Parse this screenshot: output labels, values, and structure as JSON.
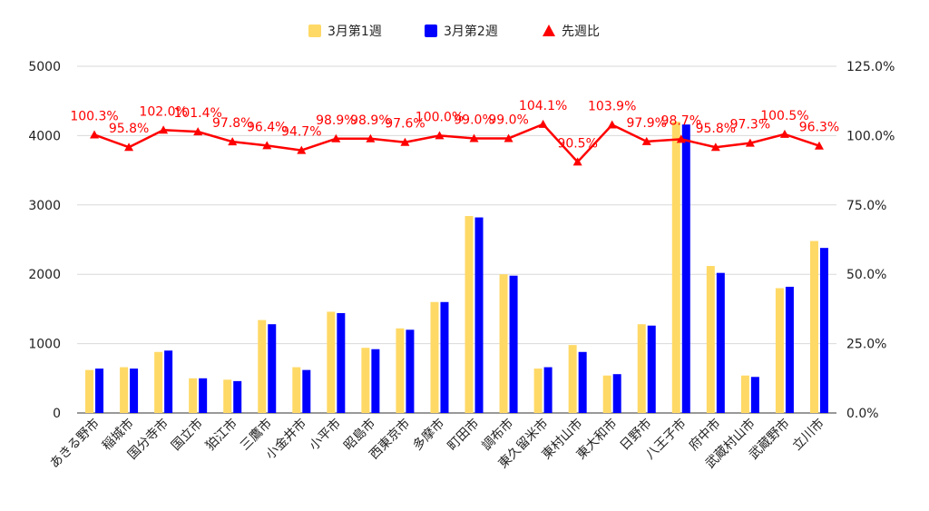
{
  "chart_data": {
    "type": "bar",
    "categories": [
      "あきる野市",
      "稲城市",
      "国分寺市",
      "国立市",
      "狛江市",
      "三鷹市",
      "小金井市",
      "小平市",
      "昭島市",
      "西東京市",
      "多摩市",
      "町田市",
      "調布市",
      "東久留米市",
      "東村山市",
      "東大和市",
      "日野市",
      "八王子市",
      "府中市",
      "武蔵村山市",
      "武蔵野市",
      "立川市"
    ],
    "series": [
      {
        "name": "3月第1週",
        "values": [
          620,
          660,
          880,
          500,
          480,
          1340,
          660,
          1460,
          940,
          1220,
          1600,
          2840,
          2000,
          640,
          980,
          540,
          1280,
          4200,
          2120,
          540,
          1800,
          2480
        ]
      },
      {
        "name": "3月第2週",
        "values": [
          640,
          640,
          900,
          500,
          460,
          1280,
          620,
          1440,
          920,
          1200,
          1600,
          2820,
          1980,
          660,
          880,
          560,
          1260,
          4160,
          2020,
          520,
          1820,
          2380
        ]
      }
    ],
    "line_series": {
      "name": "先週比",
      "values": [
        100.3,
        95.8,
        102.0,
        101.4,
        97.8,
        96.4,
        94.7,
        98.9,
        98.9,
        97.6,
        100.0,
        99.0,
        99.0,
        104.1,
        90.5,
        103.9,
        97.9,
        98.7,
        95.8,
        97.3,
        100.5,
        96.3
      ],
      "labels": [
        "100.3%",
        "95.8%",
        "102.0%",
        "101.4%",
        "97.8%",
        "96.4%",
        "94.7%",
        "98.9%",
        "98.9%",
        "97.6%",
        "100.0%",
        "99.0%",
        "99.0%",
        "104.1%",
        "90.5%",
        "103.9%",
        "97.9%",
        "98.7%",
        "95.8%",
        "97.3%",
        "100.5%",
        "96.3%"
      ]
    },
    "y_left": {
      "min": 0,
      "max": 5000,
      "ticks": [
        "0",
        "1000",
        "2000",
        "3000",
        "4000",
        "5000"
      ]
    },
    "y_right": {
      "min": 0,
      "max": 125,
      "ticks": [
        "0.0%",
        "25.0%",
        "50.0%",
        "75.0%",
        "100.0%",
        "125.0%"
      ]
    },
    "legend": [
      "3月第1週",
      "3月第2週",
      "先週比"
    ],
    "legend_position": "top",
    "grid": true,
    "colors": {
      "series1": "#ffd966",
      "series2": "#0000ff",
      "line": "#ff0000",
      "grid": "#d9d9d9",
      "axis": "#333333"
    }
  }
}
